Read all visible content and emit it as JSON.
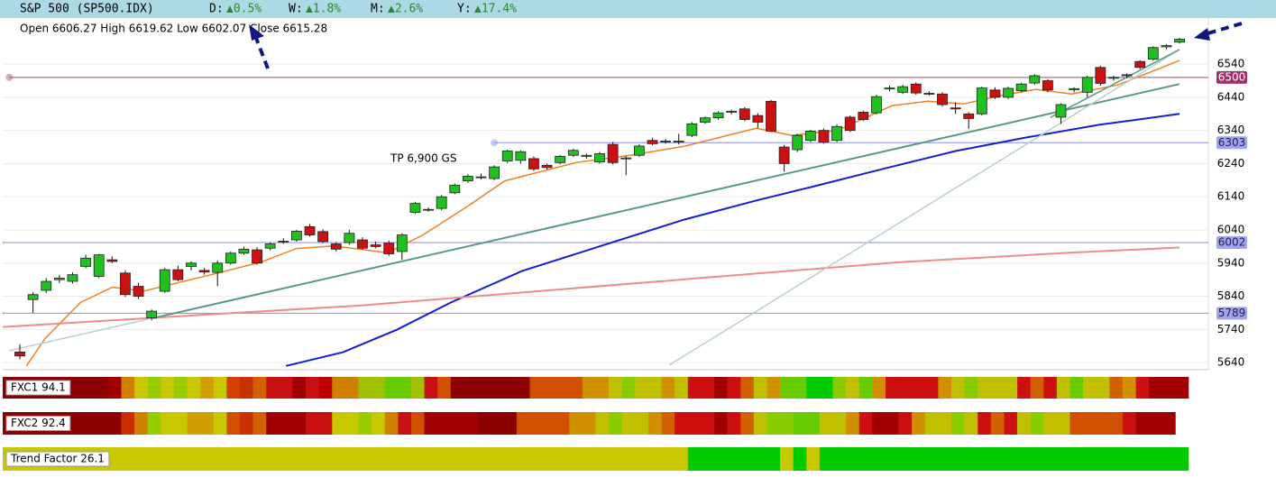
{
  "header": {
    "symbol": "S&P 500 (SP500.IDX)",
    "changes": [
      {
        "label": "D:",
        "value": "▲0.5%"
      },
      {
        "label": "W:",
        "value": "▲1.8%"
      },
      {
        "label": "M:",
        "value": "▲2.6%"
      },
      {
        "label": "Y:",
        "value": "▲17.4%"
      }
    ],
    "ohlc_line": "Open 6606.27 High 6619.62 Low 6602.07 Close 6615.28"
  },
  "chart_data": {
    "type": "candlestick",
    "annotation": "TP 6,900 GS",
    "up_color": "#1fc01f",
    "down_color": "#cc1111",
    "grid": true,
    "ylim": [
      5624,
      6679
    ],
    "yticks": [
      5640,
      5740,
      5840,
      5940,
      6040,
      6140,
      6240,
      6340,
      6440,
      6540
    ],
    "ohlc": [
      [
        5672,
        5695,
        5650,
        5660
      ],
      [
        5830,
        5852,
        5790,
        5845
      ],
      [
        5858,
        5895,
        5850,
        5885
      ],
      [
        5890,
        5905,
        5880,
        5895
      ],
      [
        5885,
        5912,
        5878,
        5905
      ],
      [
        5930,
        5965,
        5925,
        5955
      ],
      [
        5900,
        5968,
        5895,
        5965
      ],
      [
        5950,
        5960,
        5940,
        5945
      ],
      [
        5910,
        5918,
        5838,
        5845
      ],
      [
        5870,
        5880,
        5832,
        5840
      ],
      [
        5775,
        5800,
        5768,
        5795
      ],
      [
        5855,
        5925,
        5850,
        5920
      ],
      [
        5920,
        5932,
        5885,
        5890
      ],
      [
        5930,
        5945,
        5918,
        5940
      ],
      [
        5918,
        5925,
        5905,
        5913
      ],
      [
        5912,
        5948,
        5870,
        5940
      ],
      [
        5940,
        5975,
        5935,
        5970
      ],
      [
        5970,
        5990,
        5965,
        5982
      ],
      [
        5980,
        5988,
        5935,
        5940
      ],
      [
        5985,
        6002,
        5978,
        5998
      ],
      [
        6004,
        6015,
        5998,
        6006
      ],
      [
        6010,
        6040,
        6005,
        6036
      ],
      [
        6050,
        6058,
        6020,
        6025
      ],
      [
        6035,
        6042,
        6000,
        6005
      ],
      [
        5998,
        6003,
        5975,
        5982
      ],
      [
        6002,
        6040,
        5995,
        6030
      ],
      [
        6010,
        6018,
        5980,
        5985
      ],
      [
        5995,
        6005,
        5985,
        5990
      ],
      [
        6000,
        6008,
        5962,
        5968
      ],
      [
        5975,
        6030,
        5950,
        6025
      ],
      [
        6093,
        6125,
        6088,
        6120
      ],
      [
        6100,
        6108,
        6095,
        6102
      ],
      [
        6105,
        6145,
        6100,
        6140
      ],
      [
        6152,
        6180,
        6148,
        6175
      ],
      [
        6188,
        6208,
        6182,
        6202
      ],
      [
        6198,
        6210,
        6192,
        6200
      ],
      [
        6195,
        6235,
        6190,
        6230
      ],
      [
        6248,
        6282,
        6242,
        6278
      ],
      [
        6250,
        6280,
        6240,
        6276
      ],
      [
        6255,
        6262,
        6218,
        6224
      ],
      [
        6235,
        6240,
        6222,
        6228
      ],
      [
        6243,
        6266,
        6238,
        6262
      ],
      [
        6265,
        6285,
        6260,
        6280
      ],
      [
        6262,
        6270,
        6255,
        6265
      ],
      [
        6245,
        6275,
        6240,
        6270
      ],
      [
        6298,
        6305,
        6238,
        6243
      ],
      [
        6255,
        6262,
        6205,
        6257
      ],
      [
        6265,
        6298,
        6260,
        6293
      ],
      [
        6310,
        6318,
        6296,
        6300
      ],
      [
        6306,
        6315,
        6300,
        6308
      ],
      [
        6305,
        6330,
        6298,
        6308
      ],
      [
        6325,
        6365,
        6320,
        6360
      ],
      [
        6365,
        6382,
        6360,
        6378
      ],
      [
        6378,
        6398,
        6372,
        6393
      ],
      [
        6395,
        6402,
        6388,
        6398
      ],
      [
        6405,
        6410,
        6368,
        6373
      ],
      [
        6385,
        6392,
        6348,
        6365
      ],
      [
        6428,
        6432,
        6335,
        6338
      ],
      [
        6290,
        6296,
        6215,
        6240
      ],
      [
        6282,
        6330,
        6275,
        6325
      ],
      [
        6310,
        6342,
        6305,
        6338
      ],
      [
        6340,
        6346,
        6300,
        6305
      ],
      [
        6310,
        6358,
        6305,
        6352
      ],
      [
        6380,
        6385,
        6335,
        6340
      ],
      [
        6395,
        6400,
        6368,
        6373
      ],
      [
        6393,
        6448,
        6388,
        6442
      ],
      [
        6465,
        6475,
        6458,
        6468
      ],
      [
        6455,
        6478,
        6450,
        6472
      ],
      [
        6480,
        6485,
        6448,
        6453
      ],
      [
        6452,
        6458,
        6445,
        6450
      ],
      [
        6450,
        6455,
        6412,
        6418
      ],
      [
        6408,
        6425,
        6390,
        6405
      ],
      [
        6390,
        6395,
        6345,
        6376
      ],
      [
        6390,
        6472,
        6385,
        6468
      ],
      [
        6462,
        6470,
        6435,
        6440
      ],
      [
        6440,
        6472,
        6435,
        6467
      ],
      [
        6460,
        6484,
        6455,
        6480
      ],
      [
        6483,
        6510,
        6478,
        6505
      ],
      [
        6490,
        6495,
        6455,
        6462
      ],
      [
        6380,
        6422,
        6360,
        6418
      ],
      [
        6463,
        6470,
        6455,
        6466
      ],
      [
        6455,
        6505,
        6440,
        6500
      ],
      [
        6530,
        6535,
        6475,
        6482
      ],
      [
        6498,
        6505,
        6490,
        6500
      ],
      [
        6505,
        6512,
        6498,
        6508
      ],
      [
        6548,
        6552,
        6525,
        6530
      ],
      [
        6555,
        6594,
        6550,
        6590
      ],
      [
        6592,
        6600,
        6585,
        6596
      ],
      [
        6606.27,
        6619.62,
        6602.07,
        6615.28
      ]
    ],
    "lines": [
      {
        "color": "#f08020",
        "width": 1.5,
        "x": [
          0.5,
          1.9,
          4.6,
          7,
          9.4,
          14.2,
          18.3,
          21,
          23.8,
          27.9,
          30.6,
          34,
          36.8,
          42.2,
          46.3,
          50.4,
          55.9,
          58.6,
          62.1,
          66.2,
          68.9,
          71.6,
          74.4,
          77.1,
          79.8,
          83.3,
          88
        ],
        "values": [
          5630,
          5712,
          5821,
          5867,
          5856,
          5902,
          5943,
          5984,
          5992,
          5971,
          6025,
          6112,
          6188,
          6243,
          6265,
          6292,
          6347,
          6325,
          6341,
          6415,
          6428,
          6420,
          6445,
          6464,
          6450,
          6477,
          6551
        ]
      },
      {
        "color": "#1020d0",
        "width": 2,
        "x": [
          20.2,
          24.5,
          28.6,
          32.7,
          38.1,
          45,
          50.4,
          55.9,
          60,
          65.5,
          71,
          76.4,
          81.9,
          88
        ],
        "values": [
          5630,
          5671,
          5739,
          5821,
          5916,
          6003,
          6071,
          6129,
          6169,
          6224,
          6278,
          6319,
          6357,
          6390
        ]
      },
      {
        "color": "#f08a8a",
        "width": 2,
        "x": [
          -1.5,
          12.2,
          25.8,
          39.5,
          53.2,
          66.8,
          80.5,
          88
        ],
        "values": [
          5747,
          5780,
          5812,
          5856,
          5900,
          5943,
          5973,
          5987
        ]
      },
      {
        "color": "#5a9a84",
        "width": 2,
        "x": [
          10.1,
          88
        ],
        "values": [
          5774,
          6480
        ]
      },
      {
        "color": "#b8d0d0",
        "width": 1.5,
        "x": [
          -0.8,
          10.1
        ],
        "values": [
          5676,
          5774
        ]
      },
      {
        "color": "#b8d0d0",
        "width": 1.5,
        "x": [
          49.3,
          88
        ],
        "values": [
          5633,
          6584
        ]
      },
      {
        "color": "#5a9a84",
        "width": 1.5,
        "x": [
          78.2,
          88
        ],
        "values": [
          6379,
          6584
        ]
      }
    ],
    "levels": [
      {
        "value": 6500,
        "color": "#a04a70",
        "label_color": "#a0306a",
        "text_color": "#ffffff",
        "from": -0.8
      },
      {
        "value": 6303,
        "color": "#8888ee",
        "label_color": "#a0a4f0",
        "text_color": "#222244",
        "from": 36
      },
      {
        "value": 6002,
        "color": "#8888ee",
        "label_color": "#a0a4f0",
        "text_color": "#222244",
        "from": -1.5
      },
      {
        "value": 5789,
        "color": "#8888ee",
        "label_color": "#a0a4f0",
        "text_color": "#222244",
        "from": -1.5
      }
    ]
  },
  "strips": [
    {
      "label": "FXC1 94.1",
      "segments": [
        [
          "#8b0000",
          8
        ],
        [
          "#a00000",
          1
        ],
        [
          "#d08000",
          1
        ],
        [
          "#c8c800",
          1
        ],
        [
          "#99cc00",
          1
        ],
        [
          "#c8c800",
          1
        ],
        [
          "#99cc00",
          1
        ],
        [
          "#c8c800",
          1
        ],
        [
          "#d0a000",
          1
        ],
        [
          "#c8c800",
          1
        ],
        [
          "#d04000",
          1
        ],
        [
          "#c83000",
          1
        ],
        [
          "#d06000",
          1
        ],
        [
          "#c81010",
          2
        ],
        [
          "#a00000",
          1
        ],
        [
          "#c81010",
          1
        ],
        [
          "#c00000",
          1
        ],
        [
          "#d08000",
          2
        ],
        [
          "#a0c000",
          2
        ],
        [
          "#66cc00",
          2
        ],
        [
          "#a0c000",
          1
        ],
        [
          "#c81010",
          1
        ],
        [
          "#d05000",
          1
        ],
        [
          "#8b0000",
          6
        ],
        [
          "#d05000",
          4
        ],
        [
          "#d09000",
          2
        ],
        [
          "#c0c000",
          1
        ],
        [
          "#88cc00",
          1
        ],
        [
          "#c0c000",
          2
        ],
        [
          "#d09000",
          1
        ],
        [
          "#c0c000",
          1
        ],
        [
          "#cc1010",
          2
        ],
        [
          "#a00000",
          1
        ],
        [
          "#cc1010",
          1
        ],
        [
          "#d06000",
          1
        ],
        [
          "#c0c000",
          1
        ],
        [
          "#d09000",
          1
        ],
        [
          "#66cc00",
          2
        ],
        [
          "#00cc00",
          2
        ],
        [
          "#88cc00",
          1
        ],
        [
          "#c0c000",
          1
        ],
        [
          "#66cc00",
          1
        ],
        [
          "#d09000",
          1
        ],
        [
          "#cc1010",
          4
        ],
        [
          "#d09000",
          1
        ],
        [
          "#c0c000",
          1
        ],
        [
          "#88cc00",
          1
        ],
        [
          "#c0c000",
          3
        ],
        [
          "#cc1010",
          1
        ],
        [
          "#d06000",
          1
        ],
        [
          "#cc1010",
          1
        ],
        [
          "#c0c000",
          1
        ],
        [
          "#66cc00",
          1
        ],
        [
          "#c0c000",
          2
        ],
        [
          "#d06000",
          1
        ],
        [
          "#d09000",
          1
        ],
        [
          "#cc1010",
          1
        ],
        [
          "#a00000",
          3
        ]
      ]
    },
    {
      "label": "FXC2 92.4",
      "segments": [
        [
          "#8b0000",
          9
        ],
        [
          "#c83000",
          1
        ],
        [
          "#d08000",
          1
        ],
        [
          "#99cc00",
          1
        ],
        [
          "#c8c800",
          2
        ],
        [
          "#d0a000",
          2
        ],
        [
          "#c8c800",
          1
        ],
        [
          "#d05000",
          1
        ],
        [
          "#c83000",
          1
        ],
        [
          "#d06000",
          1
        ],
        [
          "#a00000",
          3
        ],
        [
          "#c81010",
          2
        ],
        [
          "#c8c800",
          2
        ],
        [
          "#99cc00",
          1
        ],
        [
          "#c8c800",
          1
        ],
        [
          "#d08000",
          1
        ],
        [
          "#c81010",
          1
        ],
        [
          "#d05000",
          1
        ],
        [
          "#a00000",
          4
        ],
        [
          "#8b0000",
          3
        ],
        [
          "#d05000",
          4
        ],
        [
          "#d09000",
          2
        ],
        [
          "#c0c000",
          1
        ],
        [
          "#88cc00",
          1
        ],
        [
          "#c0c000",
          2
        ],
        [
          "#d09000",
          1
        ],
        [
          "#d06000",
          1
        ],
        [
          "#cc1010",
          3
        ],
        [
          "#a00000",
          1
        ],
        [
          "#cc1010",
          1
        ],
        [
          "#d06000",
          1
        ],
        [
          "#c0c000",
          1
        ],
        [
          "#88cc00",
          2
        ],
        [
          "#66cc00",
          2
        ],
        [
          "#c0c000",
          2
        ],
        [
          "#d09000",
          1
        ],
        [
          "#cc1010",
          1
        ],
        [
          "#a00000",
          2
        ],
        [
          "#cc1010",
          1
        ],
        [
          "#d09000",
          1
        ],
        [
          "#c0c000",
          2
        ],
        [
          "#88cc00",
          1
        ],
        [
          "#c0c000",
          1
        ],
        [
          "#cc1010",
          1
        ],
        [
          "#d06000",
          1
        ],
        [
          "#cc1010",
          1
        ],
        [
          "#c0c000",
          1
        ],
        [
          "#88cc00",
          1
        ],
        [
          "#c0c000",
          2
        ],
        [
          "#d05000",
          4
        ],
        [
          "#cc1010",
          1
        ],
        [
          "#a00000",
          3
        ]
      ]
    },
    {
      "label": "Trend Factor 26.1",
      "segments": [
        [
          "#c8c800",
          52
        ],
        [
          "#00cc00",
          7
        ],
        [
          "#c8c800",
          1
        ],
        [
          "#00cc00",
          1
        ],
        [
          "#c8c800",
          1
        ],
        [
          "#00cc00",
          28
        ]
      ]
    }
  ]
}
